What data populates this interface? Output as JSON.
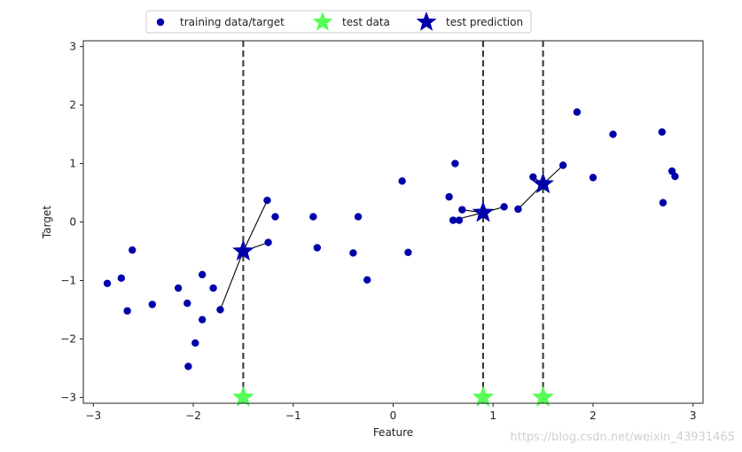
{
  "chart_data": {
    "type": "scatter",
    "xlabel": "Feature",
    "ylabel": "Target",
    "xlim": [
      -3.1,
      3.1
    ],
    "ylim": [
      -3.1,
      3.1
    ],
    "xticks": [
      -3,
      -2,
      -1,
      0,
      1,
      2,
      3
    ],
    "yticks": [
      -3,
      -2,
      -1,
      0,
      1,
      2,
      3
    ],
    "xtick_labels": [
      "−3",
      "−2",
      "−1",
      "0",
      "1",
      "2",
      "3"
    ],
    "ytick_labels": [
      "−3",
      "−2",
      "−1",
      "0",
      "1",
      "2",
      "3"
    ],
    "grid": false,
    "legend_placement": "top-center",
    "series": [
      {
        "name": "training data/target",
        "marker": "circle",
        "color": "#0000aa",
        "x": [
          -2.86,
          -2.72,
          -2.66,
          -2.61,
          -2.41,
          -2.15,
          -2.06,
          -2.05,
          -1.98,
          -1.91,
          -1.91,
          -1.8,
          -1.73,
          -1.26,
          -1.25,
          -1.18,
          -0.8,
          -0.76,
          -0.4,
          -0.35,
          -0.26,
          0.09,
          0.15,
          0.56,
          0.6,
          0.62,
          0.66,
          0.69,
          1.11,
          1.25,
          1.4,
          1.7,
          1.84,
          2.0,
          2.2,
          2.69,
          2.7,
          2.79,
          2.82
        ],
        "y": [
          -1.05,
          -0.96,
          -1.52,
          -0.48,
          -1.41,
          -1.13,
          -1.39,
          -2.47,
          -2.07,
          -0.9,
          -1.67,
          -1.13,
          -1.5,
          0.37,
          -0.35,
          0.09,
          0.09,
          -0.44,
          -0.53,
          0.09,
          -0.99,
          0.7,
          -0.52,
          0.43,
          0.03,
          1.0,
          0.03,
          0.21,
          0.26,
          0.22,
          0.77,
          0.97,
          1.88,
          0.76,
          1.5,
          1.54,
          0.33,
          0.87,
          0.78
        ]
      },
      {
        "name": "test data",
        "marker": "star",
        "color": "#55ff55",
        "x": [
          -1.5,
          0.9,
          1.5
        ],
        "y": [
          -3.0,
          -3.0,
          -3.0
        ]
      },
      {
        "name": "test prediction",
        "marker": "star",
        "color": "#0000aa",
        "x": [
          -1.5,
          0.9,
          1.5
        ],
        "y": [
          -0.5,
          0.16,
          0.65
        ]
      }
    ],
    "vlines": [
      -1.5,
      0.9,
      1.5
    ],
    "neighbor_links": [
      {
        "from": [
          -1.5,
          -0.5
        ],
        "to": [
          [
            -1.73,
            -1.5
          ],
          [
            -1.26,
            0.37
          ],
          [
            -1.25,
            -0.35
          ]
        ]
      },
      {
        "from": [
          0.9,
          0.16
        ],
        "to": [
          [
            0.6,
            0.03
          ],
          [
            0.69,
            0.21
          ],
          [
            1.11,
            0.26
          ]
        ]
      },
      {
        "from": [
          1.5,
          0.65
        ],
        "to": [
          [
            1.25,
            0.22
          ],
          [
            1.4,
            0.77
          ],
          [
            1.7,
            0.97
          ]
        ]
      }
    ]
  },
  "watermark": "https://blog.csdn.net/weixin_43931465"
}
